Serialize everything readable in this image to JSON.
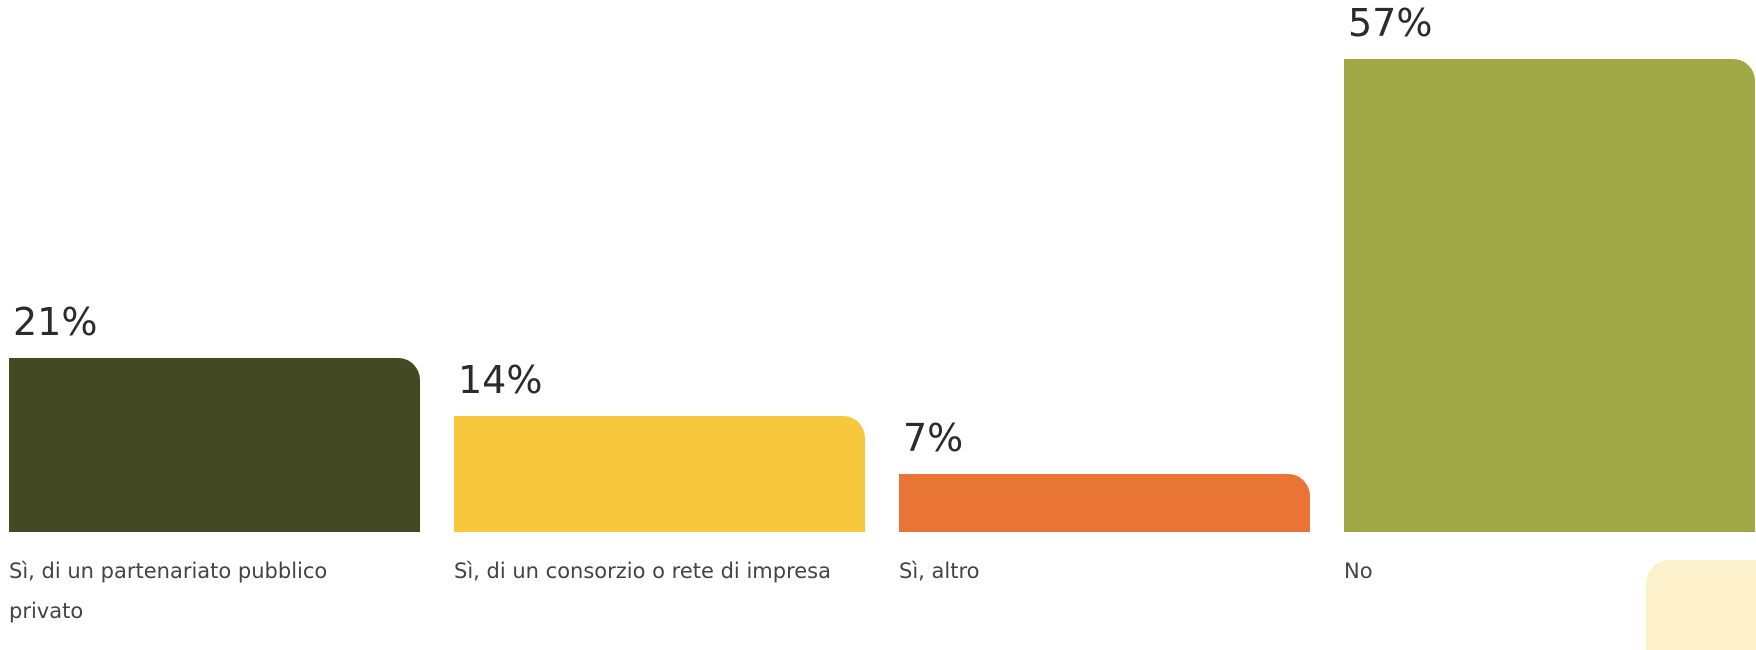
{
  "chart_data": {
    "type": "bar",
    "categories": [
      "Sì, di un partenariato pubblico privato",
      "Sì, di un consorzio o rete di impresa",
      "Sì, altro",
      "No"
    ],
    "values": [
      21,
      14,
      7,
      57
    ],
    "value_labels": [
      "21%",
      "14%",
      "7%",
      "57%"
    ],
    "colors": [
      "#434a23",
      "#f7c83c",
      "#e87535",
      "#a0a846"
    ]
  }
}
